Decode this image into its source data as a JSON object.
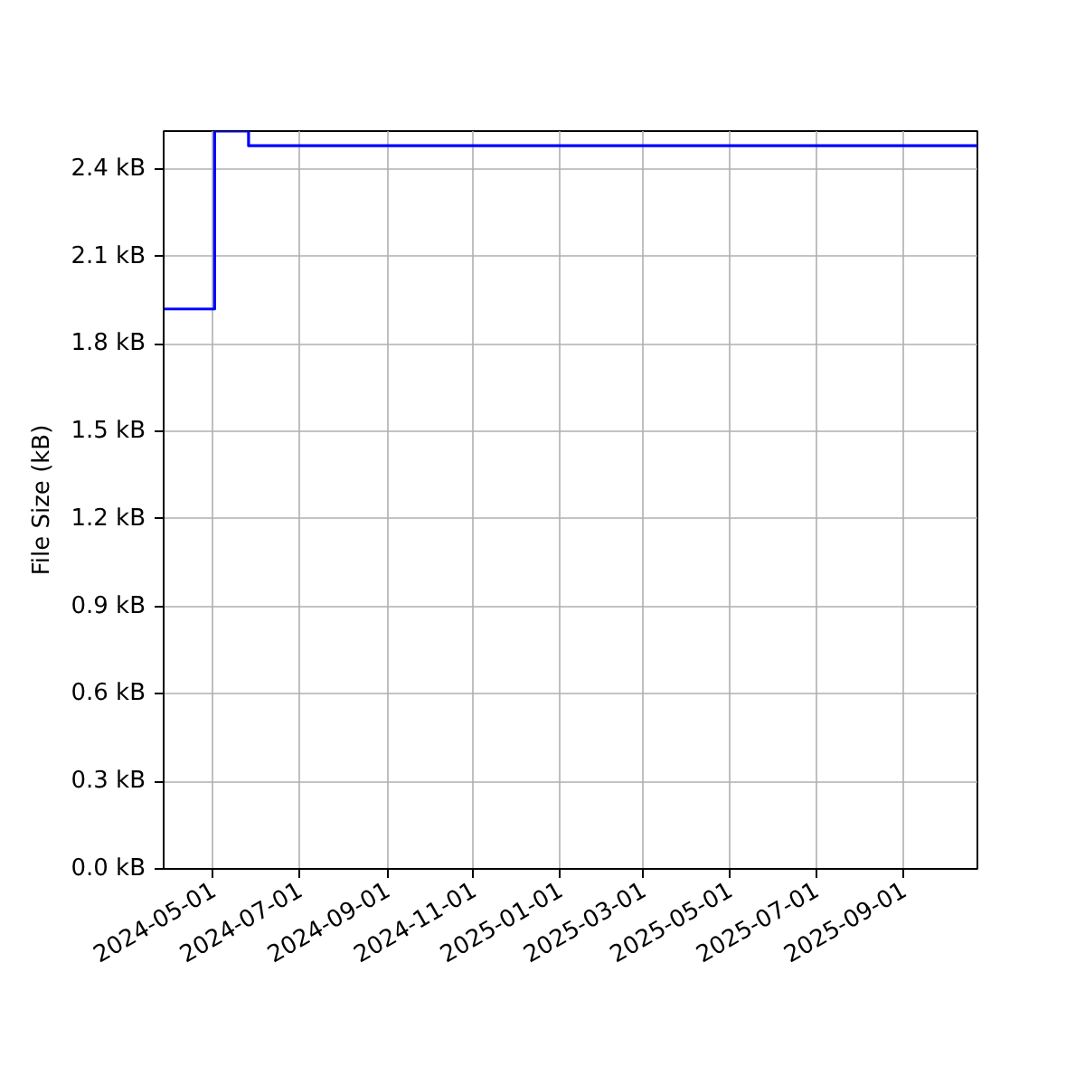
{
  "chart_data": {
    "type": "step",
    "ylabel": "File Size (kB)",
    "x": [
      "2024-03-27",
      "2024-05-02",
      "2024-05-26",
      "2025-10-23"
    ],
    "series": [
      {
        "color": "#0000ff",
        "values": [
          1.92,
          2.53,
          2.48,
          2.48
        ]
      }
    ],
    "xlim": [
      "2024-03-27",
      "2025-10-23"
    ],
    "xticks": [
      "2024-05-01",
      "2024-07-01",
      "2024-09-01",
      "2024-11-01",
      "2025-01-01",
      "2025-03-01",
      "2025-05-01",
      "2025-07-01",
      "2025-09-01"
    ],
    "ylim": [
      0,
      2.53
    ],
    "yticks": [
      {
        "value": 0,
        "label": "0.0 kB"
      },
      {
        "value": 0.3,
        "label": "0.3 kB"
      },
      {
        "value": 0.6,
        "label": "0.6 kB"
      },
      {
        "value": 0.9,
        "label": "0.9 kB"
      },
      {
        "value": 1.2,
        "label": "1.2 kB"
      },
      {
        "value": 1.5,
        "label": "1.5 kB"
      },
      {
        "value": 1.8,
        "label": "1.8 kB"
      },
      {
        "value": 2.1,
        "label": "2.1 kB"
      },
      {
        "value": 2.4,
        "label": "2.4 kB"
      }
    ],
    "grid": true,
    "line_style": "solid"
  }
}
